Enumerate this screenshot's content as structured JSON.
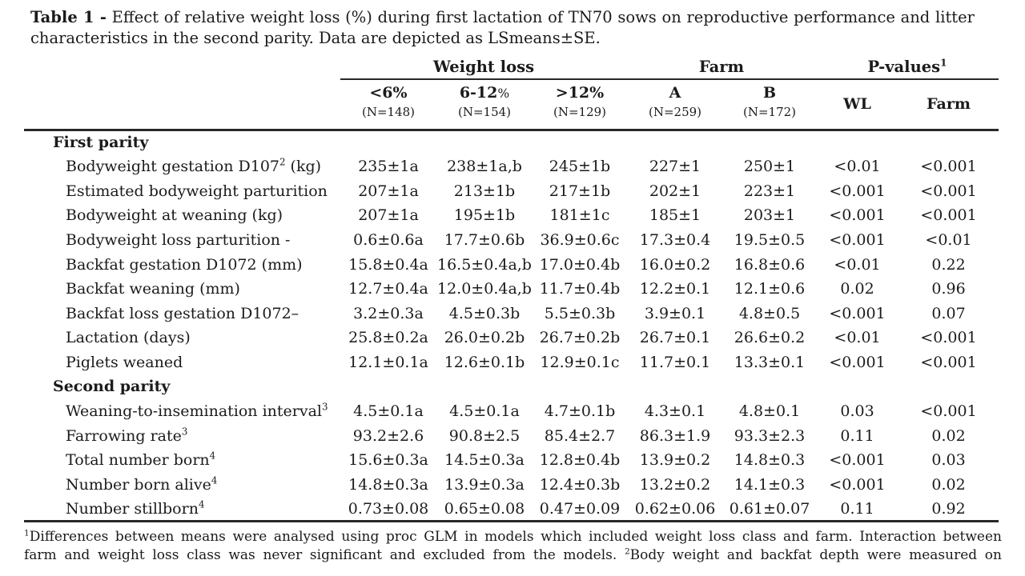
{
  "title": {
    "bold": "Table 1 -",
    "line1": " Effect of relative weight loss (%) during first lactation of TN70 sows on reproductive performance and litter",
    "line2": "characteristics in the second parity. Data are depicted as LSmeans±SE."
  },
  "header": {
    "groups": [
      {
        "label": "Weight loss",
        "sup": ""
      },
      {
        "label": "Farm",
        "sup": ""
      },
      {
        "label": "P-values",
        "sup": "1"
      }
    ],
    "columns": [
      {
        "main": "<6%",
        "small": "",
        "n": "(N=148)"
      },
      {
        "main": "6-12",
        "small": "%",
        "n": "(N=154)"
      },
      {
        "main": ">12%",
        "small": "",
        "n": "(N=129)"
      },
      {
        "main": "A",
        "small": "",
        "n": "(N=259)"
      },
      {
        "main": "B",
        "small": "",
        "n": "(N=172)"
      },
      {
        "main": "WL",
        "small": "",
        "n": ""
      },
      {
        "main": "Farm",
        "small": "",
        "n": ""
      }
    ]
  },
  "chart_data": {
    "type": "table",
    "title": "Effect of relative weight loss (%) during first lactation of TN70 sows on reproductive performance and litter characteristics in the second parity",
    "columns": [
      "<6% (N=148)",
      "6-12% (N=154)",
      ">12% (N=129)",
      "Farm A (N=259)",
      "Farm B (N=172)",
      "P-value WL",
      "P-value Farm"
    ]
  },
  "sections": [
    {
      "name": "First parity",
      "rows": [
        {
          "label": {
            "pre": "Bodyweight gestation D107",
            "sup": "2",
            "post": " (kg)"
          },
          "values": [
            "235±1a",
            "238±1a,b",
            "245±1b",
            "227±1",
            "250±1",
            "<0.01",
            "<0.001"
          ]
        },
        {
          "label": {
            "pre": "Estimated bodyweight parturition",
            "sup": "",
            "post": ""
          },
          "values": [
            "207±1a",
            "213±1b",
            "217±1b",
            "202±1",
            "223±1",
            "<0.001",
            "<0.001"
          ]
        },
        {
          "label": {
            "pre": "Bodyweight at weaning (kg)",
            "sup": "",
            "post": ""
          },
          "values": [
            "207±1a",
            "195±1b",
            "181±1c",
            "185±1",
            "203±1",
            "<0.001",
            "<0.001"
          ]
        },
        {
          "label": {
            "pre": "Bodyweight loss parturition -",
            "sup": "",
            "post": ""
          },
          "values": [
            "0.6±0.6a",
            "17.7±0.6b",
            "36.9±0.6c",
            "17.3±0.4",
            "19.5±0.5",
            "<0.001",
            "<0.01"
          ]
        },
        {
          "label": {
            "pre": "Backfat gestation D1072 (mm)",
            "sup": "",
            "post": ""
          },
          "values": [
            "15.8±0.4a",
            "16.5±0.4a,b",
            "17.0±0.4b",
            "16.0±0.2",
            "16.8±0.6",
            "<0.01",
            "0.22"
          ]
        },
        {
          "label": {
            "pre": "Backfat weaning (mm)",
            "sup": "",
            "post": ""
          },
          "values": [
            "12.7±0.4a",
            "12.0±0.4a,b",
            "11.7±0.4b",
            "12.2±0.1",
            "12.1±0.6",
            "0.02",
            "0.96"
          ]
        },
        {
          "label": {
            "pre": "Backfat loss gestation D1072–",
            "sup": "",
            "post": ""
          },
          "values": [
            "3.2±0.3a",
            "4.5±0.3b",
            "5.5±0.3b",
            "3.9±0.1",
            "4.8±0.5",
            "<0.001",
            "0.07"
          ]
        },
        {
          "label": {
            "pre": "Lactation (days)",
            "sup": "",
            "post": ""
          },
          "values": [
            "25.8±0.2a",
            "26.0±0.2b",
            "26.7±0.2b",
            "26.7±0.1",
            "26.6±0.2",
            "<0.01",
            "<0.001"
          ]
        },
        {
          "label": {
            "pre": "Piglets weaned",
            "sup": "",
            "post": ""
          },
          "values": [
            "12.1±0.1a",
            "12.6±0.1b",
            "12.9±0.1c",
            "11.7±0.1",
            "13.3±0.1",
            "<0.001",
            "<0.001"
          ]
        }
      ]
    },
    {
      "name": "Second parity",
      "rows": [
        {
          "label": {
            "pre": "Weaning-to-insemination interval",
            "sup": "3",
            "post": ""
          },
          "values": [
            "4.5±0.1a",
            "4.5±0.1a",
            "4.7±0.1b",
            "4.3±0.1",
            "4.8±0.1",
            "0.03",
            "<0.001"
          ]
        },
        {
          "label": {
            "pre": "Farrowing rate",
            "sup": "3",
            "post": ""
          },
          "values": [
            "93.2±2.6",
            "90.8±2.5",
            "85.4±2.7",
            "86.3±1.9",
            "93.3±2.3",
            "0.11",
            "0.02"
          ]
        },
        {
          "label": {
            "pre": "Total number born",
            "sup": "4",
            "post": ""
          },
          "values": [
            "15.6±0.3a",
            "14.5±0.3a",
            "12.8±0.4b",
            "13.9±0.2",
            "14.8±0.3",
            "<0.001",
            "0.03"
          ]
        },
        {
          "label": {
            "pre": "Number born alive",
            "sup": "4",
            "post": ""
          },
          "values": [
            "14.8±0.3a",
            "13.9±0.3a",
            "12.4±0.3b",
            "13.2±0.2",
            "14.1±0.3",
            "<0.001",
            "0.02"
          ]
        },
        {
          "label": {
            "pre": "Number stillborn",
            "sup": "4",
            "post": ""
          },
          "values": [
            "0.73±0.08",
            "0.65±0.08",
            "0.47±0.09",
            "0.62±0.06",
            "0.61±0.07",
            "0.11",
            "0.92"
          ]
        }
      ]
    }
  ],
  "footnote": {
    "lines": [
      {
        "parts": [
          {
            "sup": "1",
            "text": "Differences between means were analysed using proc GLM in models which included weight loss class and farm. Interaction between"
          }
        ]
      },
      {
        "parts": [
          {
            "sup": "",
            "text": "farm and weight loss class was never significant and excluded from the models. "
          },
          {
            "sup": "2",
            "text": "Body weight and backfat depth were measured on"
          }
        ]
      }
    ]
  }
}
